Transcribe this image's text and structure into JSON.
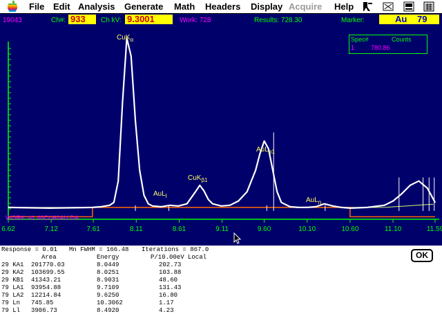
{
  "menubar": {
    "items": [
      {
        "label": "File",
        "x": 0
      },
      {
        "label": "Edit"
      },
      {
        "label": "Analysis"
      },
      {
        "label": "Generate"
      },
      {
        "label": "Math"
      },
      {
        "label": "Headers"
      },
      {
        "label": "Display"
      },
      {
        "label": "Acquire",
        "disabled": true
      },
      {
        "label": "Help"
      }
    ]
  },
  "status": {
    "counter": "19043",
    "ch_label": "Ch#:",
    "ch_value": "933",
    "kv_label": "Ch kV:",
    "kv_value": "9.3001",
    "work": "Work: 728",
    "results": "Results: 728.30",
    "marker_label": "Marker:",
    "marker_element": "Au",
    "marker_z": "79"
  },
  "spec_box": {
    "header_spec": "Spec#",
    "header_counts": "Counts",
    "spec": "1",
    "counts": "780.86"
  },
  "work_label": "WORK: #1  40CU60AU.DA",
  "peak_labels": {
    "cuka": "CuK",
    "cuka_sub": "α",
    "cukb1": "CuK",
    "cukb1_sub": "β1",
    "aul1": "AuL",
    "aul1_sub": "l",
    "aula1": "AuL",
    "aula1_sub": "α1",
    "auln": "AuL",
    "auln_sub": "η"
  },
  "colors": {
    "plot_bg": "#00006b",
    "axis": "#00ff00",
    "spectrum": "#ffffff",
    "fit": "#ff6600",
    "background_line": "#ccff66",
    "label": "#ffff66"
  },
  "chart_data": {
    "type": "line",
    "xlabel": "",
    "ylabel": "",
    "xlim": [
      6.62,
      11.59
    ],
    "x_ticks": [
      "6.62",
      "7.12",
      "7.61",
      "8.11",
      "8.61",
      "9.11",
      "9.60",
      "10.10",
      "10.60",
      "11.10",
      "11.59"
    ],
    "series": [
      {
        "x": [
          6.62,
          7.1,
          7.6,
          7.7,
          7.8,
          7.85,
          7.9,
          7.95,
          8.0,
          8.05,
          8.1,
          8.15,
          8.2,
          8.25,
          8.3,
          8.4,
          8.5,
          8.6,
          8.7,
          8.8,
          8.85,
          8.9,
          8.95,
          9.0,
          9.1,
          9.2,
          9.3,
          9.4,
          9.5,
          9.55,
          9.6,
          9.65,
          9.7,
          9.75,
          9.8,
          9.9,
          10.0,
          10.1,
          10.2,
          10.3,
          10.4,
          10.5,
          10.6,
          10.8,
          11.0,
          11.1,
          11.2,
          11.3,
          11.4,
          11.5,
          11.59
        ],
        "y": [
          3,
          2,
          3,
          4,
          6,
          10,
          40,
          150,
          240,
          215,
          125,
          55,
          20,
          8,
          5,
          4,
          6,
          5,
          8,
          25,
          34,
          26,
          14,
          8,
          5,
          6,
          12,
          25,
          55,
          78,
          96,
          85,
          55,
          25,
          10,
          4,
          3,
          3,
          4,
          8,
          5,
          3,
          2,
          3,
          6,
          12,
          22,
          34,
          40,
          30,
          10
        ]
      }
    ]
  },
  "table": {
    "response": "Response =  0.01",
    "fwhm": "Mn FWHM = 166.48",
    "iterations": "Iterations = 867.0",
    "headers": [
      "Area",
      "Energy",
      "P/10.00eV Local"
    ],
    "rows": [
      {
        "line": "29 KA1",
        "area": "201770.03",
        "energy": "8.0449",
        "pb": "202.73"
      },
      {
        "line": "29 KA2",
        "area": "103699.55",
        "energy": "8.0251",
        "pb": "103.88"
      },
      {
        "line": "29 KB1",
        "area": "41343.21",
        "energy": "8.9031",
        "pb": "48.60"
      },
      {
        "line": "79 LA1",
        "area": "93954.88",
        "energy": "9.7109",
        "pb": "131.43"
      },
      {
        "line": "79 LA2",
        "area": "12214.84",
        "energy": "9.6250",
        "pb": "16.80"
      },
      {
        "line": "79 Ln",
        "area": "745.85",
        "energy": "10.3062",
        "pb": "1.17"
      },
      {
        "line": "79 Ll",
        "area": "3906.73",
        "energy": "8.4920",
        "pb": "4.23"
      }
    ],
    "ok_label": "OK"
  }
}
